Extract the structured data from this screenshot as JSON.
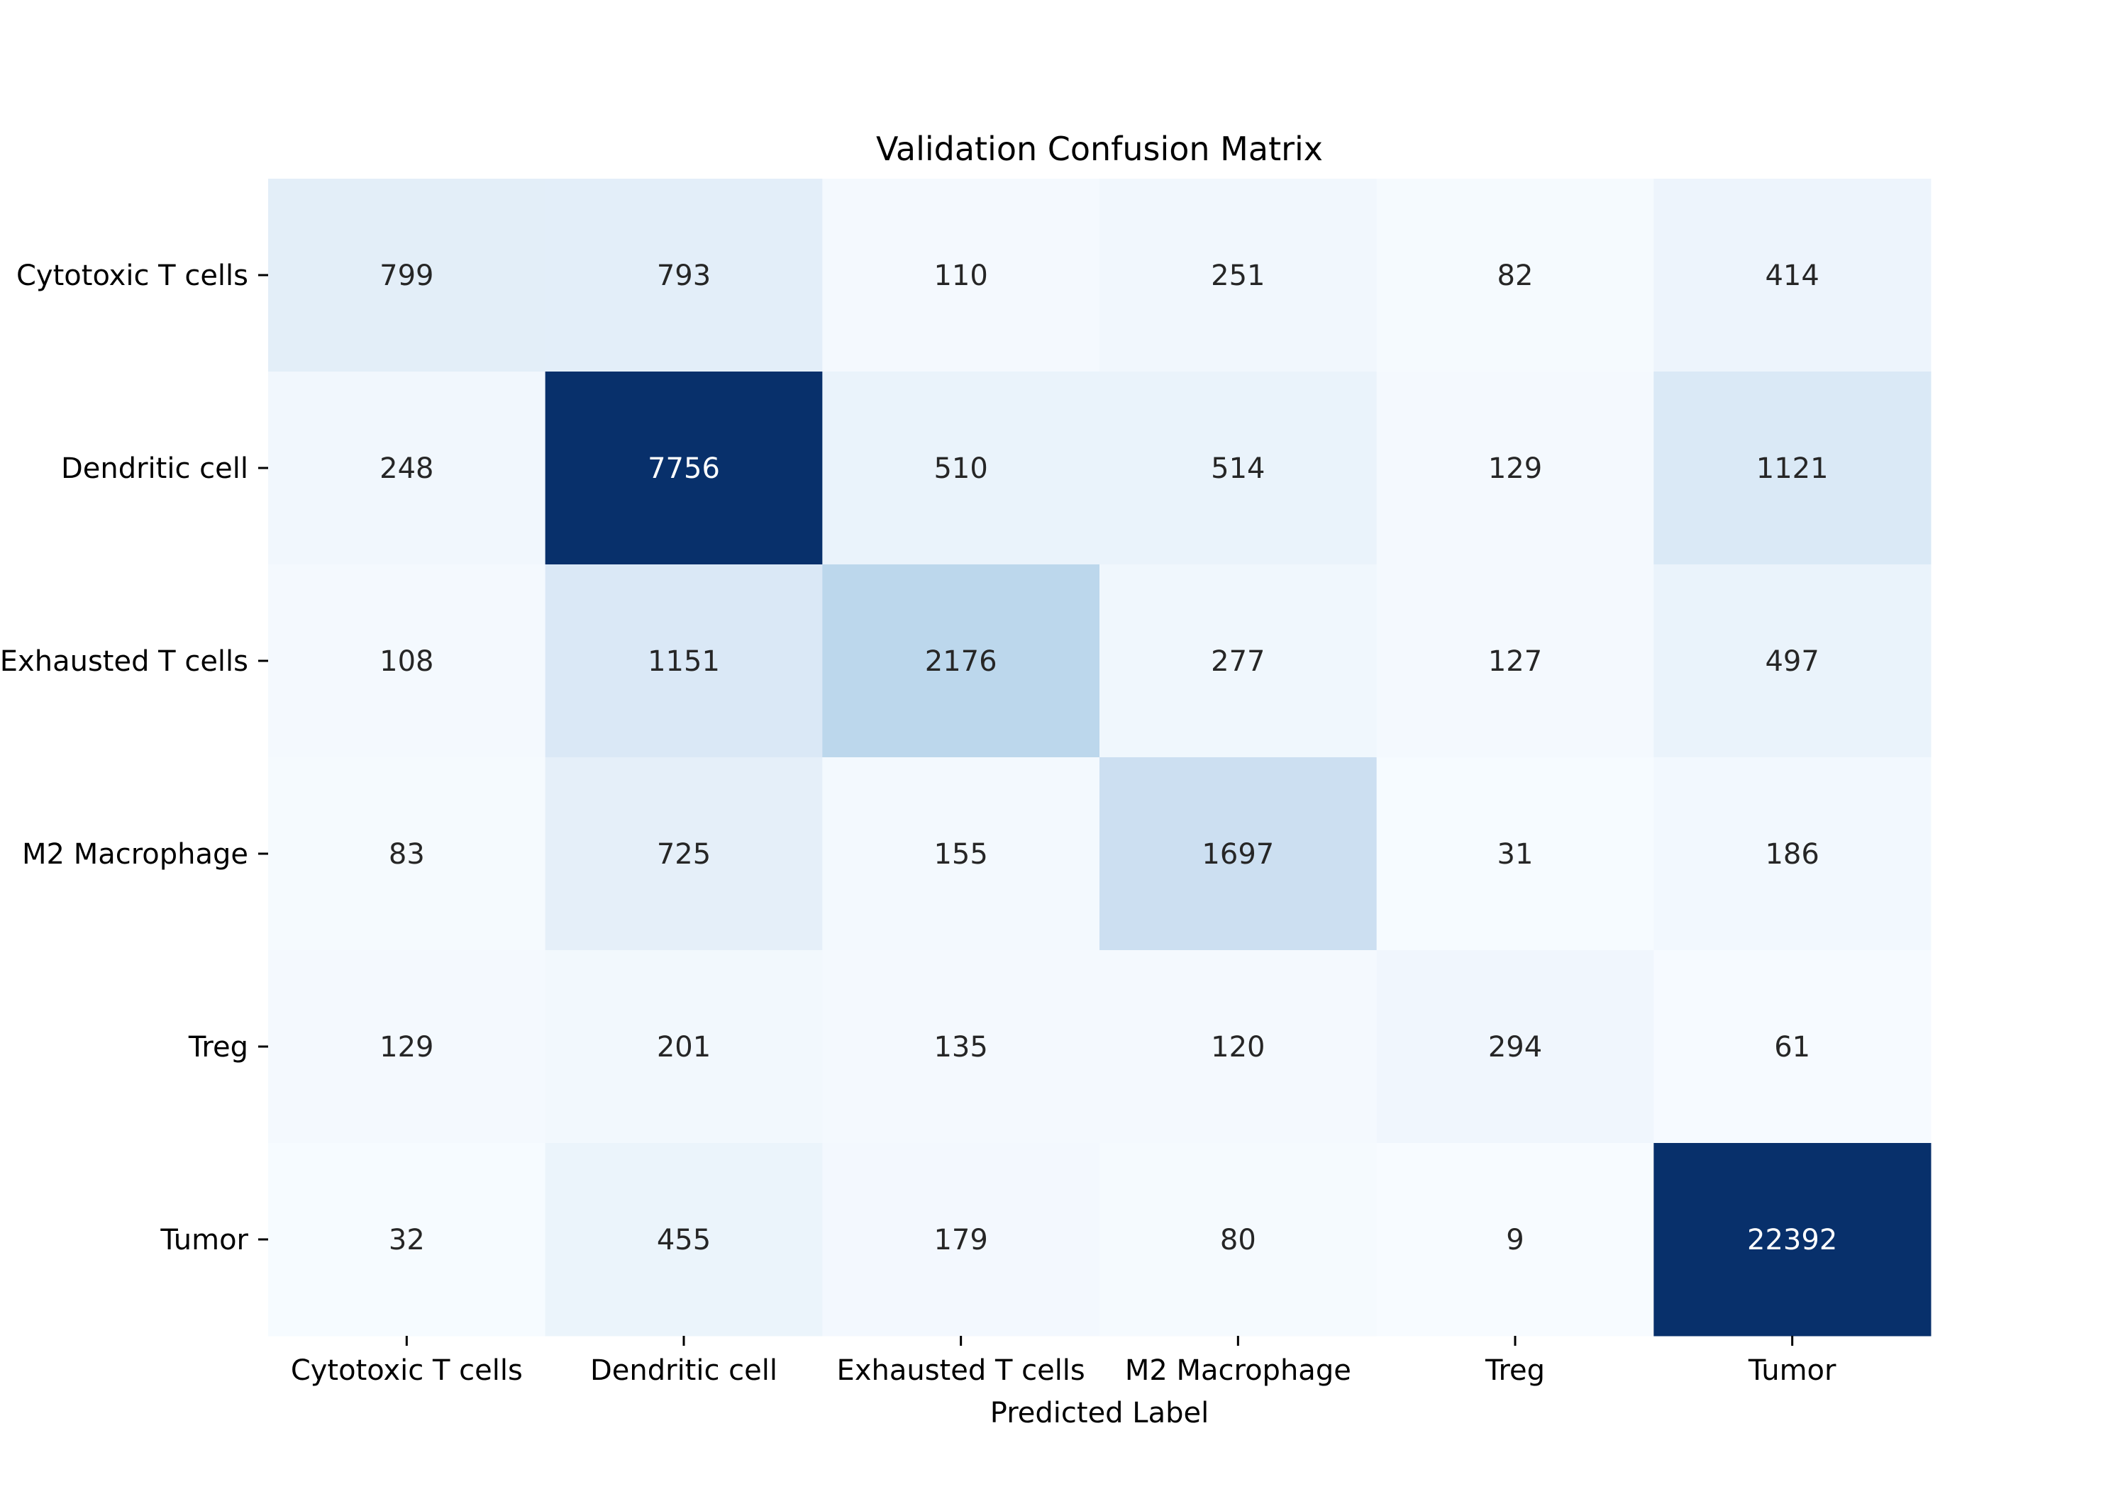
{
  "chart_data": {
    "type": "heatmap",
    "title": "Validation Confusion Matrix",
    "xlabel": "Predicted Label",
    "ylabel": "",
    "x_categories": [
      "Cytotoxic T cells",
      "Dendritic cell",
      "Exhausted T cells",
      "M2 Macrophage",
      "Treg",
      "Tumor"
    ],
    "y_categories": [
      "Cytotoxic T cells",
      "Dendritic cell",
      "Exhausted T cells",
      "M2 Macrophage",
      "Treg",
      "Tumor"
    ],
    "values": [
      [
        799,
        793,
        110,
        251,
        82,
        414
      ],
      [
        248,
        7756,
        510,
        514,
        129,
        1121
      ],
      [
        108,
        1151,
        2176,
        277,
        127,
        497
      ],
      [
        83,
        725,
        155,
        1697,
        31,
        186
      ],
      [
        129,
        201,
        135,
        120,
        294,
        61
      ],
      [
        32,
        455,
        179,
        80,
        9,
        22392
      ]
    ],
    "colormap": "Blues",
    "vmin": 9,
    "vmax": 7756,
    "colorbar": false,
    "grid": false,
    "colors": {
      "low": "#f7fbff",
      "high": "#08306b",
      "light_text": "#ffffff",
      "dark_text": "#262626"
    }
  }
}
